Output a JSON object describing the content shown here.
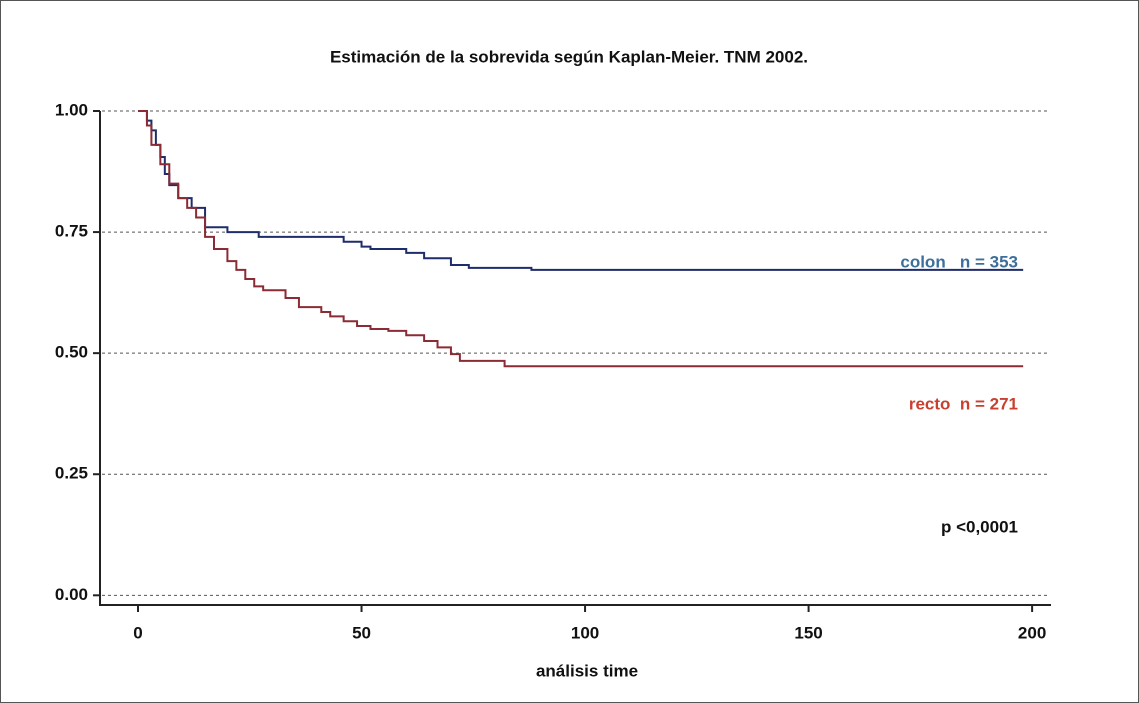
{
  "chart_data": {
    "type": "step",
    "title": "Estimación de la sobrevida según Kaplan-Meier. TNM 2002.",
    "x_label": "análisis time",
    "xlim": [
      -8.5,
      204
    ],
    "xticks": [
      0,
      50,
      100,
      150,
      200
    ],
    "ylim": [
      -0.02,
      1
    ],
    "yticks": [
      {
        "value": 0,
        "label": "0.00"
      },
      {
        "value": 0.25,
        "label": "0.25"
      },
      {
        "value": 0.5,
        "label": "0.50"
      },
      {
        "value": 0.75,
        "label": "0.75"
      },
      {
        "value": 1,
        "label": "1.00"
      }
    ],
    "grid": true,
    "series": [
      {
        "name": "colon   n = 353",
        "color": "#1f2d6b",
        "label_color": "#3d6f9a",
        "x": [
          0,
          2,
          3,
          4,
          5,
          6,
          7,
          9,
          12,
          15,
          20,
          27,
          46,
          50,
          52,
          60,
          64,
          70,
          74,
          88,
          198
        ],
        "values": [
          1,
          0.98,
          0.96,
          0.93,
          0.905,
          0.87,
          0.847,
          0.82,
          0.8,
          0.76,
          0.75,
          0.74,
          0.73,
          0.72,
          0.715,
          0.707,
          0.696,
          0.682,
          0.676,
          0.672,
          0.672
        ]
      },
      {
        "name": "recto  n = 271",
        "color": "#8b2b35",
        "label_color": "#c8412f",
        "x": [
          0,
          2,
          3,
          5,
          7,
          9,
          11,
          13,
          15,
          17,
          20,
          22,
          24,
          26,
          28,
          33,
          36,
          41,
          43,
          46,
          49,
          52,
          56,
          60,
          64,
          67,
          70,
          72,
          82,
          198
        ],
        "values": [
          1,
          0.97,
          0.93,
          0.89,
          0.85,
          0.82,
          0.8,
          0.78,
          0.74,
          0.715,
          0.69,
          0.672,
          0.653,
          0.638,
          0.63,
          0.614,
          0.595,
          0.585,
          0.576,
          0.566,
          0.556,
          0.55,
          0.546,
          0.537,
          0.525,
          0.512,
          0.498,
          0.484,
          0.473,
          0.473
        ]
      }
    ],
    "annotation": "p <0,0001"
  }
}
